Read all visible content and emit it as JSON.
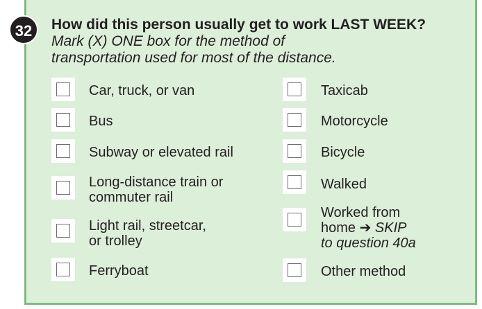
{
  "question": {
    "number": "32",
    "bold_text": "How did this person usually get to work LAST WEEK?",
    "instruction_part1": "Mark (X) ONE box for the method of",
    "instruction_part2": "transportation used for most of the distance."
  },
  "options": {
    "car": {
      "label": "Car, truck, or van"
    },
    "bus": {
      "label": "Bus"
    },
    "subway": {
      "label": "Subway or elevated rail"
    },
    "train": {
      "line1": "Long-distance train or",
      "line2": "commuter rail"
    },
    "lightrail": {
      "line1": "Light rail, streetcar,",
      "line2": "or trolley"
    },
    "ferry": {
      "label": "Ferryboat"
    },
    "taxi": {
      "label": "Taxicab"
    },
    "motorcycle": {
      "label": "Motorcycle"
    },
    "bicycle": {
      "label": "Bicycle"
    },
    "walked": {
      "label": "Walked"
    },
    "home": {
      "line1": "Worked from",
      "line2_text": "home",
      "arrow": "➔",
      "skip": "SKIP",
      "line3": "to question 40a"
    },
    "other": {
      "label": "Other method"
    }
  },
  "colors": {
    "panel_background": "#dcefd9",
    "panel_border": "#7dbb7f",
    "text": "#231f20"
  }
}
